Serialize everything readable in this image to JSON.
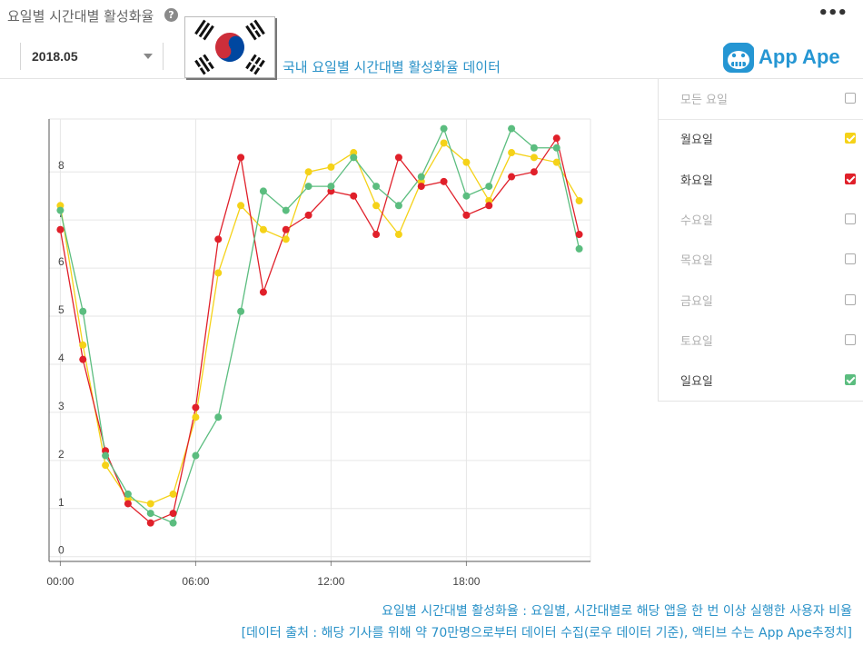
{
  "header": {
    "title": "요일별 시간대별 활성화율",
    "help_icon": "question-icon",
    "more_icon": "more-icon",
    "more_label": "•••"
  },
  "filters": {
    "month": "2018.05",
    "flag_icon": "south-korea-flag-icon",
    "flag_caption": "국내 요일별 시간대별 활성화율 데이터"
  },
  "logo": {
    "icon": "app-ape-monkey-icon",
    "text": "App Ape",
    "color": "#2596d3"
  },
  "sidebar": {
    "items": [
      {
        "label": "모든 요일",
        "checked": false,
        "color": "#bbbbbb",
        "text_color": "#b0b0b0"
      },
      {
        "label": "월요일",
        "checked": true,
        "color": "#f5d218",
        "text_color": "#444444"
      },
      {
        "label": "화요일",
        "checked": true,
        "color": "#e0202a",
        "text_color": "#444444"
      },
      {
        "label": "수요일",
        "checked": false,
        "color": "#bbbbbb",
        "text_color": "#b0b0b0"
      },
      {
        "label": "목요일",
        "checked": false,
        "color": "#bbbbbb",
        "text_color": "#b0b0b0"
      },
      {
        "label": "금요일",
        "checked": false,
        "color": "#bbbbbb",
        "text_color": "#b0b0b0"
      },
      {
        "label": "토요일",
        "checked": false,
        "color": "#bbbbbb",
        "text_color": "#b0b0b0"
      },
      {
        "label": "일요일",
        "checked": true,
        "color": "#5bbd7f",
        "text_color": "#444444"
      }
    ]
  },
  "footnotes": {
    "line1": "요일별 시간대별 활성화율 : 요일별, 시간대별로 해당 앱을 한 번 이상 실행한 사용자 비율",
    "line2": "[데이터 출처 : 해당 기사를 위해 약 70만명으로부터 데이터 수집(로우 데이터 기준), 액티브 수는 App Ape추정치]"
  },
  "chart_data": {
    "type": "line",
    "x": [
      0,
      1,
      2,
      3,
      4,
      5,
      6,
      7,
      8,
      9,
      10,
      11,
      12,
      13,
      14,
      15,
      16,
      17,
      18,
      19,
      20,
      21,
      22,
      23
    ],
    "xticks": [
      {
        "value": 0,
        "label": "00:00"
      },
      {
        "value": 6,
        "label": "06:00"
      },
      {
        "value": 12,
        "label": "12:00"
      },
      {
        "value": 18,
        "label": "18:00"
      }
    ],
    "yticks": [
      0,
      1,
      2,
      3,
      4,
      5,
      6,
      7,
      8
    ],
    "xlim": [
      -0.5,
      23.5
    ],
    "ylim": [
      -0.1,
      9.1
    ],
    "grid": true,
    "series": [
      {
        "name": "월요일",
        "color": "#f5d218",
        "values": [
          7.3,
          4.4,
          1.9,
          1.2,
          1.1,
          1.3,
          2.9,
          5.9,
          7.3,
          6.8,
          6.6,
          8.0,
          8.1,
          8.4,
          7.3,
          6.7,
          7.8,
          8.6,
          8.2,
          7.4,
          8.4,
          8.3,
          8.2,
          7.4
        ]
      },
      {
        "name": "화요일",
        "color": "#e0202a",
        "values": [
          6.8,
          4.1,
          2.2,
          1.1,
          0.7,
          0.9,
          3.1,
          6.6,
          8.3,
          5.5,
          6.8,
          7.1,
          7.6,
          7.5,
          6.7,
          8.3,
          7.7,
          7.8,
          7.1,
          7.3,
          7.9,
          8.0,
          8.7,
          6.7
        ]
      },
      {
        "name": "일요일",
        "color": "#5bbd7f",
        "values": [
          7.2,
          5.1,
          2.1,
          1.3,
          0.9,
          0.7,
          2.1,
          2.9,
          5.1,
          7.6,
          7.2,
          7.7,
          7.7,
          8.3,
          7.7,
          7.3,
          7.9,
          8.9,
          7.5,
          7.7,
          8.9,
          8.5,
          8.5,
          6.4
        ]
      }
    ]
  }
}
